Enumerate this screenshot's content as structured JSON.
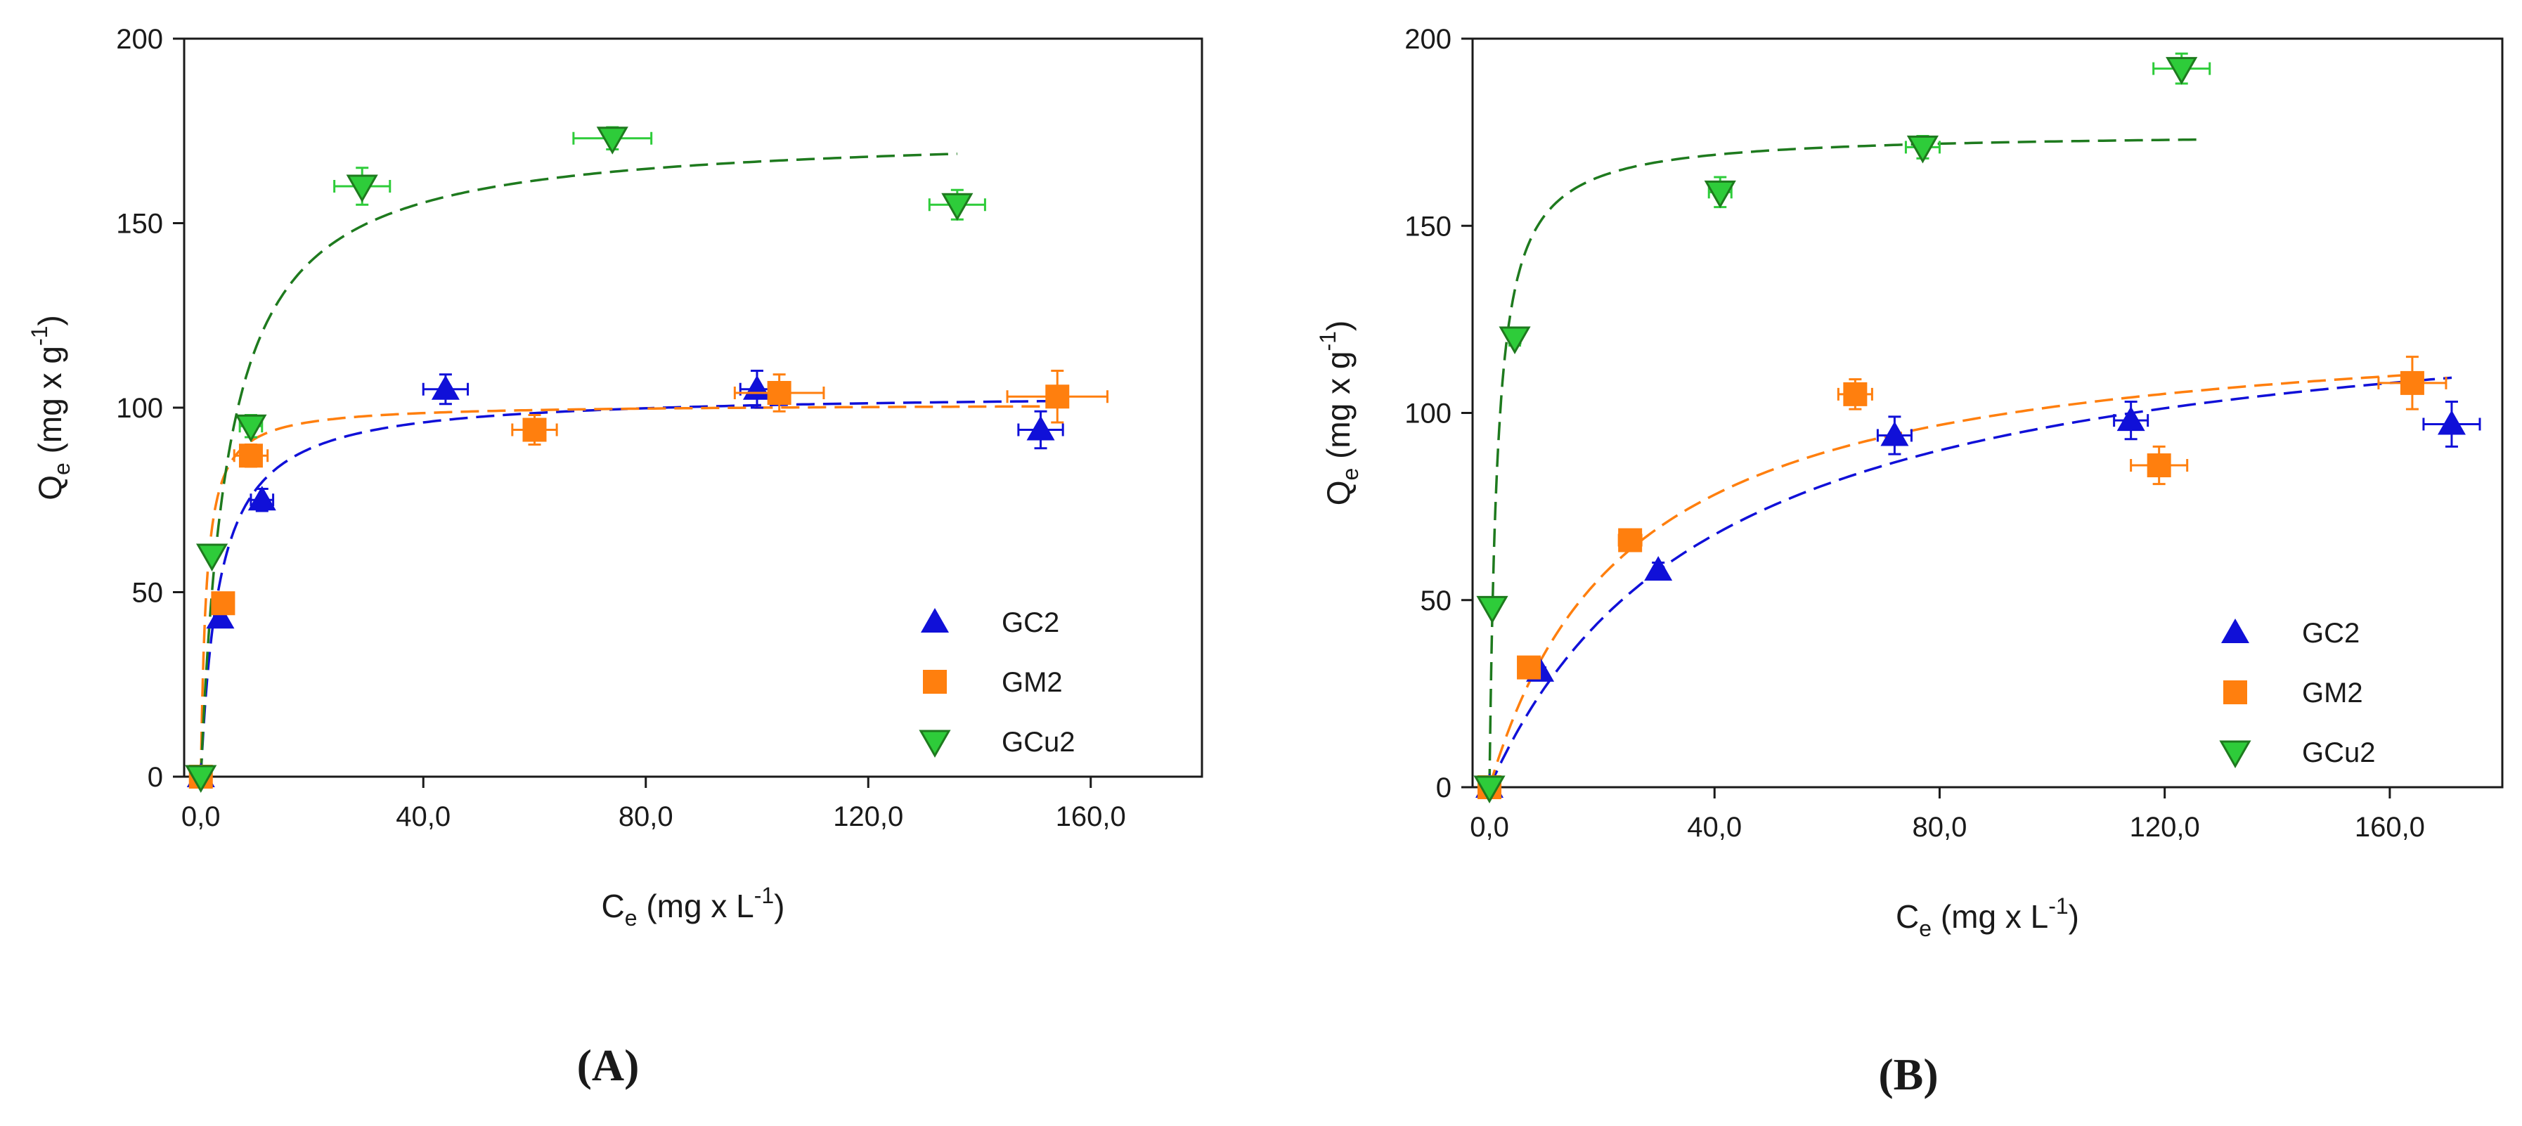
{
  "colors": {
    "GC2": "#1010d8",
    "GM2": "#ff7f0e",
    "GCu2": "#2ecc3a",
    "GCu2_fit": "#1e7a1e",
    "GCu2_edge": "#1e7a1e",
    "axis": "#1a1a1a"
  },
  "chart_data": [
    {
      "type": "scatter",
      "panel_label": "(A)",
      "xlabel": {
        "base": "C",
        "sub": "e",
        "unit": " (mg x L",
        "sup": "-1",
        "close": ")"
      },
      "ylabel": {
        "base": "Q",
        "sub": "e",
        "unit": " (mg x g",
        "sup": "-1",
        "close": ")"
      },
      "xlim": [
        -3,
        180
      ],
      "ylim": [
        0,
        200
      ],
      "xticks": [
        0,
        40,
        80,
        120,
        160
      ],
      "xtick_labels": [
        "0,0",
        "40,0",
        "80,0",
        "120,0",
        "160,0"
      ],
      "yticks": [
        0,
        50,
        100,
        150,
        200
      ],
      "ytick_labels": [
        "0",
        "50",
        "100",
        "150",
        "200"
      ],
      "legend_position": "bottom-right",
      "series": [
        {
          "name": "GC2",
          "marker": "triangle-up",
          "color_key": "GC2",
          "points": [
            {
              "x": 0,
              "y": 0,
              "xerr": 0,
              "yerr": 0
            },
            {
              "x": 3.5,
              "y": 43,
              "xerr": 0,
              "yerr": 2
            },
            {
              "x": 11,
              "y": 75,
              "xerr": 2,
              "yerr": 3
            },
            {
              "x": 44,
              "y": 105,
              "xerr": 4,
              "yerr": 4
            },
            {
              "x": 100,
              "y": 105,
              "xerr": 3,
              "yerr": 5
            },
            {
              "x": 151,
              "y": 94,
              "xerr": 4,
              "yerr": 5
            }
          ],
          "fit": {
            "model": "langmuir",
            "qmax": 104,
            "KL": 0.3,
            "x_end": 152
          }
        },
        {
          "name": "GM2",
          "marker": "square",
          "color_key": "GM2",
          "points": [
            {
              "x": 0,
              "y": 0,
              "xerr": 0,
              "yerr": 0
            },
            {
              "x": 4,
              "y": 47,
              "xerr": 0,
              "yerr": 2
            },
            {
              "x": 9,
              "y": 87,
              "xerr": 3,
              "yerr": 3
            },
            {
              "x": 60,
              "y": 94,
              "xerr": 4,
              "yerr": 4
            },
            {
              "x": 104,
              "y": 104,
              "xerr": 8,
              "yerr": 5
            },
            {
              "x": 154,
              "y": 103,
              "xerr": 9,
              "yerr": 7
            }
          ],
          "fit": {
            "model": "langmuir",
            "qmax": 101,
            "KL": 1.0,
            "x_end": 152
          }
        },
        {
          "name": "GCu2",
          "marker": "triangle-down",
          "color_key": "GCu2",
          "edge_key": "GCu2_edge",
          "fit_color_key": "GCu2_fit",
          "points": [
            {
              "x": 0,
              "y": 0,
              "xerr": 0,
              "yerr": 0
            },
            {
              "x": 2,
              "y": 60,
              "xerr": 0,
              "yerr": 1
            },
            {
              "x": 9,
              "y": 95,
              "xerr": 2,
              "yerr": 3
            },
            {
              "x": 29,
              "y": 160,
              "xerr": 5,
              "yerr": 5
            },
            {
              "x": 74,
              "y": 173,
              "xerr": 7,
              "yerr": 3
            },
            {
              "x": 136,
              "y": 155,
              "xerr": 5,
              "yerr": 4
            }
          ],
          "fit": {
            "model": "langmuir",
            "qmax": 175,
            "KL": 0.2,
            "x_end": 136
          }
        }
      ]
    },
    {
      "type": "scatter",
      "panel_label": "(B)",
      "xlabel": {
        "base": "C",
        "sub": "e",
        "unit": " (mg x L",
        "sup": "-1",
        "close": ")"
      },
      "ylabel": {
        "base": "Q",
        "sub": "e",
        "unit": " (mg x g",
        "sup": "-1",
        "close": ")"
      },
      "xlim": [
        -3,
        180
      ],
      "ylim": [
        0,
        200
      ],
      "xticks": [
        0,
        40,
        80,
        120,
        160
      ],
      "xtick_labels": [
        "0,0",
        "40,0",
        "80,0",
        "120,0",
        "160,0"
      ],
      "yticks": [
        0,
        50,
        100,
        150,
        200
      ],
      "ytick_labels": [
        "0",
        "50",
        "100",
        "150",
        "200"
      ],
      "legend_position": "bottom-right",
      "series": [
        {
          "name": "GC2",
          "marker": "triangle-up",
          "color_key": "GC2",
          "points": [
            {
              "x": 0,
              "y": 0,
              "xerr": 0,
              "yerr": 0
            },
            {
              "x": 9,
              "y": 31,
              "xerr": 0,
              "yerr": 1
            },
            {
              "x": 30,
              "y": 58,
              "xerr": 0,
              "yerr": 2
            },
            {
              "x": 72,
              "y": 94,
              "xerr": 3,
              "yerr": 5
            },
            {
              "x": 114,
              "y": 98,
              "xerr": 3,
              "yerr": 5
            },
            {
              "x": 171,
              "y": 97,
              "xerr": 5,
              "yerr": 6
            }
          ],
          "fit": {
            "model": "langmuir",
            "qmax": 135,
            "KL": 0.025,
            "x_end": 171
          }
        },
        {
          "name": "GM2",
          "marker": "square",
          "color_key": "GM2",
          "points": [
            {
              "x": 0,
              "y": 0,
              "xerr": 0,
              "yerr": 0
            },
            {
              "x": 7,
              "y": 32,
              "xerr": 0,
              "yerr": 1
            },
            {
              "x": 25,
              "y": 66,
              "xerr": 2,
              "yerr": 2
            },
            {
              "x": 65,
              "y": 105,
              "xerr": 3,
              "yerr": 4
            },
            {
              "x": 119,
              "y": 86,
              "xerr": 5,
              "yerr": 5
            },
            {
              "x": 164,
              "y": 108,
              "xerr": 6,
              "yerr": 7
            }
          ],
          "fit": {
            "model": "langmuir",
            "qmax": 127,
            "KL": 0.04,
            "x_end": 164
          }
        },
        {
          "name": "GCu2",
          "marker": "triangle-down",
          "color_key": "GCu2",
          "edge_key": "GCu2_edge",
          "fit_color_key": "GCu2_fit",
          "points": [
            {
              "x": 0,
              "y": 0,
              "xerr": 0,
              "yerr": 0
            },
            {
              "x": 0.5,
              "y": 48,
              "xerr": 0,
              "yerr": 0
            },
            {
              "x": 4.5,
              "y": 120,
              "xerr": 1,
              "yerr": 2
            },
            {
              "x": 41,
              "y": 159,
              "xerr": 2,
              "yerr": 4
            },
            {
              "x": 77,
              "y": 171,
              "xerr": 3,
              "yerr": 3
            },
            {
              "x": 123,
              "y": 192,
              "xerr": 5,
              "yerr": 4
            }
          ],
          "fit": {
            "model": "langmuir",
            "qmax": 175,
            "KL": 0.7,
            "x_end": 127
          }
        }
      ]
    }
  ]
}
